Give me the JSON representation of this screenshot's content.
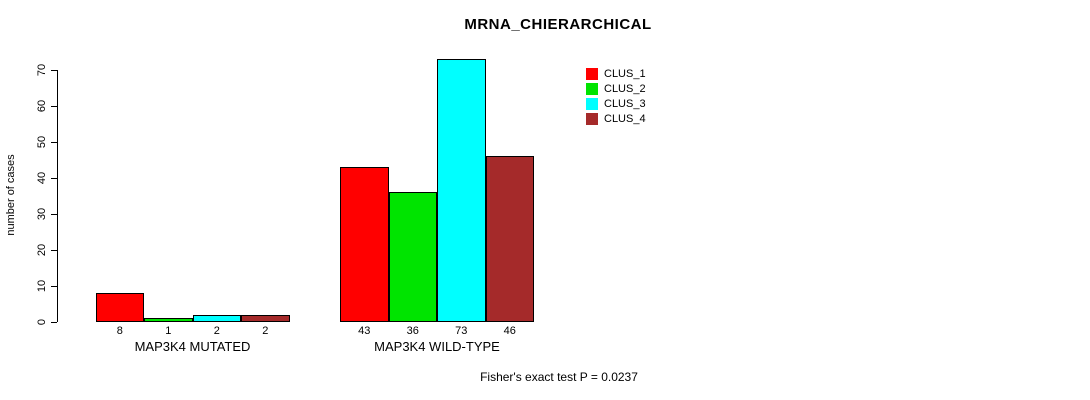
{
  "title": "MRNA_CHIERARCHICAL",
  "footer": {
    "stat_text": "Fisher's exact test P = 0.0237"
  },
  "chart_data": {
    "type": "bar",
    "title": "MRNA_CHIERARCHICAL",
    "xlabel": "",
    "ylabel": "number of cases",
    "ylim": [
      0,
      70
    ],
    "yticks": [
      0,
      10,
      20,
      30,
      40,
      50,
      60,
      70
    ],
    "grid": false,
    "legend_position": "top-right",
    "categories": [
      "MAP3K4 MUTATED",
      "MAP3K4 WILD-TYPE"
    ],
    "series": [
      {
        "name": "CLUS_1",
        "color": "#ff0000",
        "values": [
          8,
          43
        ]
      },
      {
        "name": "CLUS_2",
        "color": "#00e400",
        "values": [
          1,
          36
        ]
      },
      {
        "name": "CLUS_3",
        "color": "#00ffff",
        "values": [
          2,
          73
        ]
      },
      {
        "name": "CLUS_4",
        "color": "#a52a2a",
        "values": [
          2,
          46
        ]
      }
    ],
    "bar_value_labels": true,
    "annotation": "Fisher's exact test P = 0.0237"
  }
}
